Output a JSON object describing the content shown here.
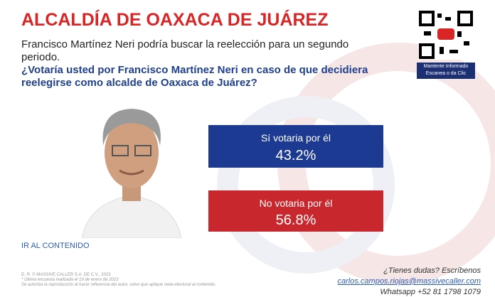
{
  "header": {
    "title": "ALCALDÍA DE OAXACA DE JUÁREZ",
    "subtitle": "Francisco Martínez Neri podría buscar la reelección para un segundo periodo.",
    "question": "¿Votaría usted por Francisco Martínez Neri en caso de que decidiera reelegirse como alcalde de Oaxaca de Juárez?"
  },
  "qr": {
    "caption_1": "Mantente Informado",
    "caption_2": "Escanea o da Clic"
  },
  "results": [
    {
      "label": "Sí votaria por él",
      "value": "43.2%"
    },
    {
      "label": "No votaria por él",
      "value": "56.8%"
    }
  ],
  "link": "IR AL CONTENIDO",
  "footer": {
    "copyright": "D. R. © MASSIVE CALLER S.A. DE C.V., 2023",
    "note": "*   Última encuesta realizada el 19 de enero de 2023",
    "license": "Se autoriza la reproducción al hacer referencia del autor, salvo que aplique veda electoral al contenido.",
    "contact_prompt": "¿Tienes dudas? Escríbenos",
    "email": "carlos.campos.riojas@massivecaller.com",
    "phone": "Whatsapp +52 81 1798 1079"
  }
}
